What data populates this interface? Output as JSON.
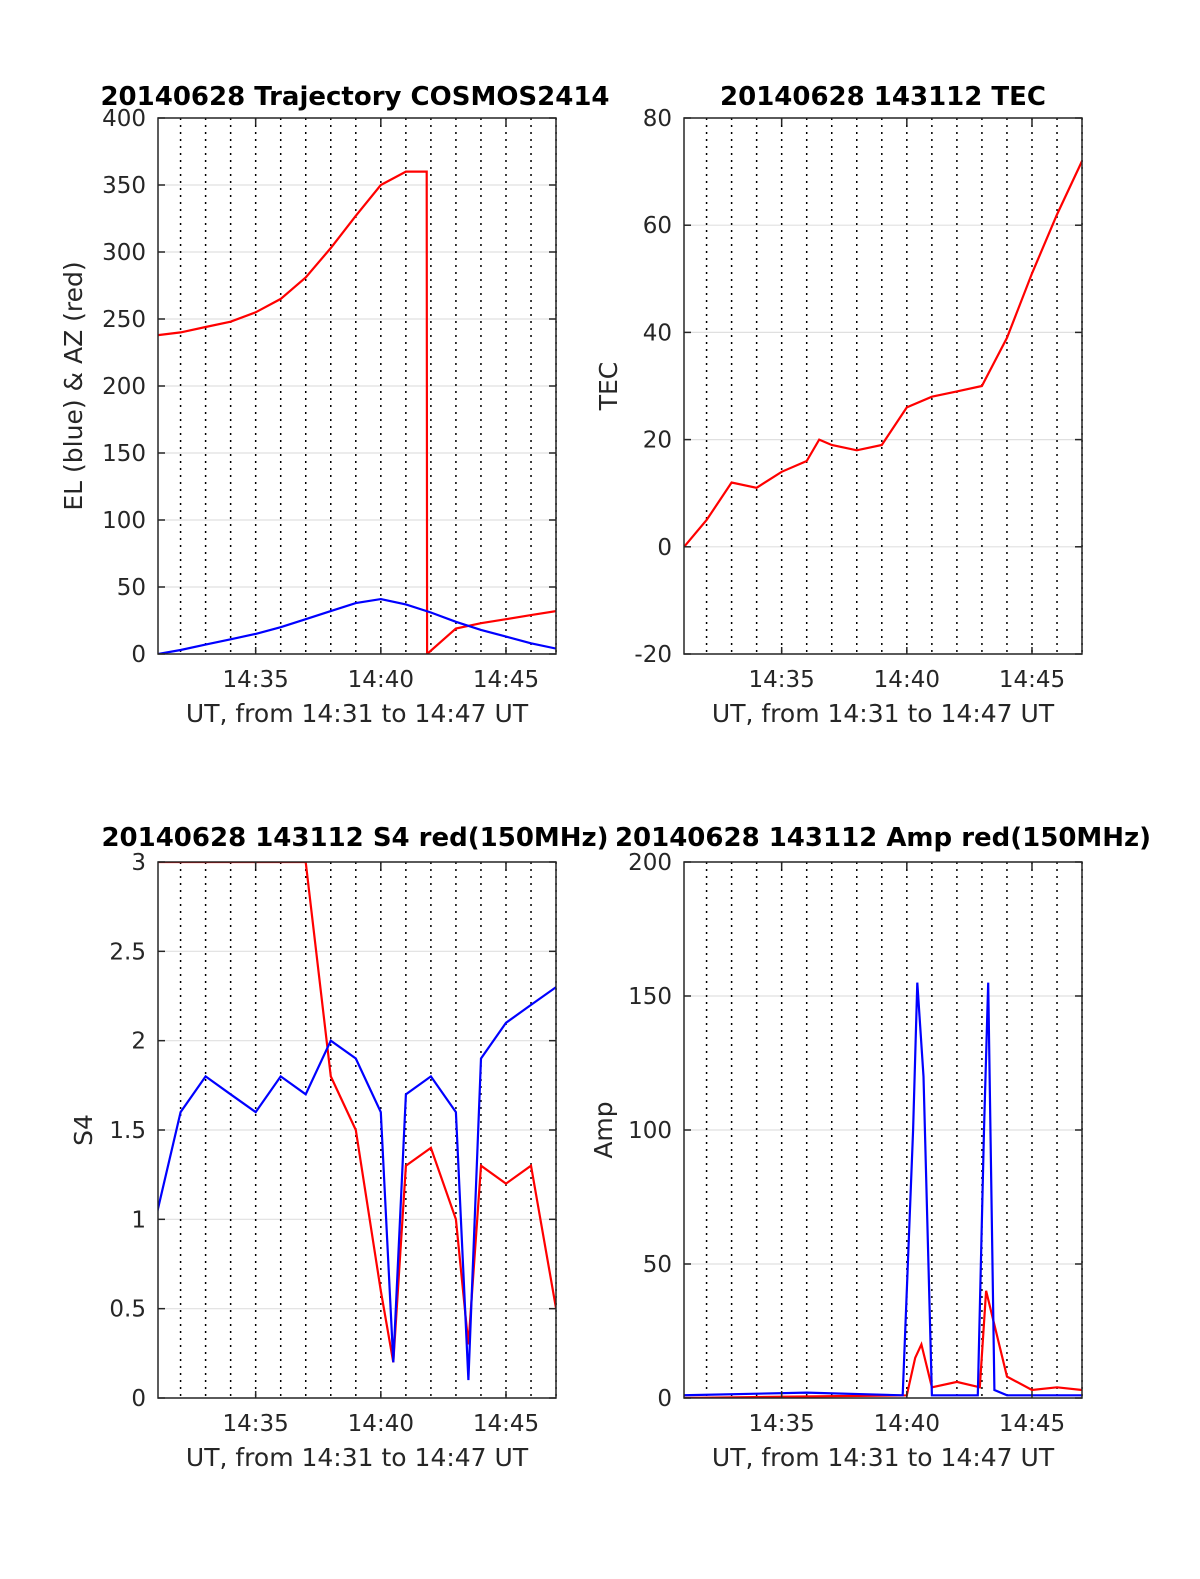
{
  "chart_data": [
    {
      "type": "line",
      "title": "20140628 Trajectory COSMOS2414",
      "xlabel": "UT, from 14:31 to 14:47 UT",
      "ylabel": "EL (blue) & AZ (red)",
      "xlim": [
        14.5183,
        14.7833
      ],
      "ylim": [
        0,
        400
      ],
      "yticks": [
        0,
        50,
        100,
        150,
        200,
        250,
        300,
        350,
        400
      ],
      "xticks": [
        "14:35",
        "14:40",
        "14:45"
      ],
      "grid": true,
      "series": [
        {
          "color": "#ff0000",
          "x": [
            "14:31:06",
            "14:32",
            "14:33",
            "14:34",
            "14:35",
            "14:36",
            "14:37",
            "14:38",
            "14:39",
            "14:40",
            "14:41",
            "14:41:50",
            "14:41:51",
            "14:43",
            "14:44",
            "14:45",
            "14:46",
            "14:47"
          ],
          "values": [
            238,
            240,
            244,
            248,
            255,
            265,
            281,
            303,
            327,
            350,
            360,
            360,
            0,
            19,
            23,
            26,
            29,
            32
          ]
        },
        {
          "color": "#0000ff",
          "x": [
            "14:31:06",
            "14:32",
            "14:33",
            "14:34",
            "14:35",
            "14:36",
            "14:37",
            "14:38",
            "14:39",
            "14:40",
            "14:41",
            "14:42",
            "14:43",
            "14:44",
            "14:45",
            "14:46",
            "14:47"
          ],
          "values": [
            0,
            3,
            7,
            11,
            15,
            20,
            26,
            32,
            38,
            41,
            37,
            31,
            24,
            18,
            13,
            8,
            4
          ]
        }
      ]
    },
    {
      "type": "line",
      "title": "20140628 143112 TEC",
      "xlabel": "UT, from 14:31 to 14:47 UT",
      "ylabel": "TEC",
      "xlim": [
        14.5183,
        14.7833
      ],
      "ylim": [
        -20,
        80
      ],
      "yticks": [
        -20,
        0,
        20,
        40,
        60,
        80
      ],
      "xticks": [
        "14:35",
        "14:40",
        "14:45"
      ],
      "grid": true,
      "series": [
        {
          "color": "#ff0000",
          "x": [
            "14:31:06",
            "14:32",
            "14:33",
            "14:34",
            "14:35",
            "14:36",
            "14:36:30",
            "14:37",
            "14:38",
            "14:39",
            "14:40",
            "14:41",
            "14:42",
            "14:43",
            "14:44",
            "14:45",
            "14:46",
            "14:47"
          ],
          "values": [
            0,
            5,
            12,
            11,
            14,
            16,
            20,
            19,
            18,
            19,
            26,
            28,
            29,
            30,
            39,
            51,
            62,
            72
          ]
        }
      ]
    },
    {
      "type": "line",
      "title": "20140628 143112 S4 red(150MHz)",
      "xlabel": "UT, from 14:31 to 14:47 UT",
      "ylabel": "S4",
      "xlim": [
        14.5183,
        14.7833
      ],
      "ylim": [
        0,
        3
      ],
      "yticks": [
        0,
        0.5,
        1,
        1.5,
        2,
        2.5,
        3
      ],
      "xticks": [
        "14:35",
        "14:40",
        "14:45"
      ],
      "grid": true,
      "series": [
        {
          "color": "#ff0000",
          "x": [
            "14:31",
            "14:33",
            "14:35",
            "14:37",
            "14:38",
            "14:39",
            "14:40",
            "14:40:30",
            "14:41",
            "14:42",
            "14:43",
            "14:43:30",
            "14:44",
            "14:45",
            "14:46",
            "14:47"
          ],
          "values": [
            3.0,
            3.0,
            3.0,
            3.0,
            1.8,
            1.5,
            0.6,
            0.2,
            1.3,
            1.4,
            1.0,
            0.3,
            1.3,
            1.2,
            1.3,
            0.5
          ]
        },
        {
          "color": "#0000ff",
          "x": [
            "14:31",
            "14:32",
            "14:33",
            "14:34",
            "14:35",
            "14:36",
            "14:37",
            "14:38",
            "14:39",
            "14:40",
            "14:40:30",
            "14:41",
            "14:42",
            "14:43",
            "14:43:30",
            "14:44",
            "14:45",
            "14:46",
            "14:47"
          ],
          "values": [
            1.0,
            1.6,
            1.8,
            1.7,
            1.6,
            1.8,
            1.7,
            2.0,
            1.9,
            1.6,
            0.2,
            1.7,
            1.8,
            1.6,
            0.1,
            1.9,
            2.1,
            2.2,
            2.3
          ]
        }
      ]
    },
    {
      "type": "line",
      "title": "20140628 143112 Amp red(150MHz)",
      "xlabel": "UT, from 14:31 to 14:47 UT",
      "ylabel": "Amp",
      "xlim": [
        14.5183,
        14.7833
      ],
      "ylim": [
        0,
        200
      ],
      "yticks": [
        0,
        50,
        100,
        150,
        200
      ],
      "xticks": [
        "14:35",
        "14:40",
        "14:45"
      ],
      "grid": true,
      "series": [
        {
          "color": "#ff0000",
          "x": [
            "14:31",
            "14:40",
            "14:40:20",
            "14:40:35",
            "14:41",
            "14:42",
            "14:42:55",
            "14:43:10",
            "14:44",
            "14:45",
            "14:46",
            "14:47"
          ],
          "values": [
            0,
            1,
            15,
            20,
            4,
            6,
            4,
            40,
            8,
            3,
            4,
            3
          ]
        },
        {
          "color": "#0000ff",
          "x": [
            "14:31",
            "14:36",
            "14:39:50",
            "14:40:15",
            "14:40:25",
            "14:40:40",
            "14:41",
            "14:42:50",
            "14:43:05",
            "14:43:15",
            "14:43:30",
            "14:44",
            "14:47"
          ],
          "values": [
            1,
            2,
            1,
            100,
            155,
            120,
            1,
            1,
            100,
            155,
            3,
            1,
            1
          ]
        }
      ]
    }
  ]
}
